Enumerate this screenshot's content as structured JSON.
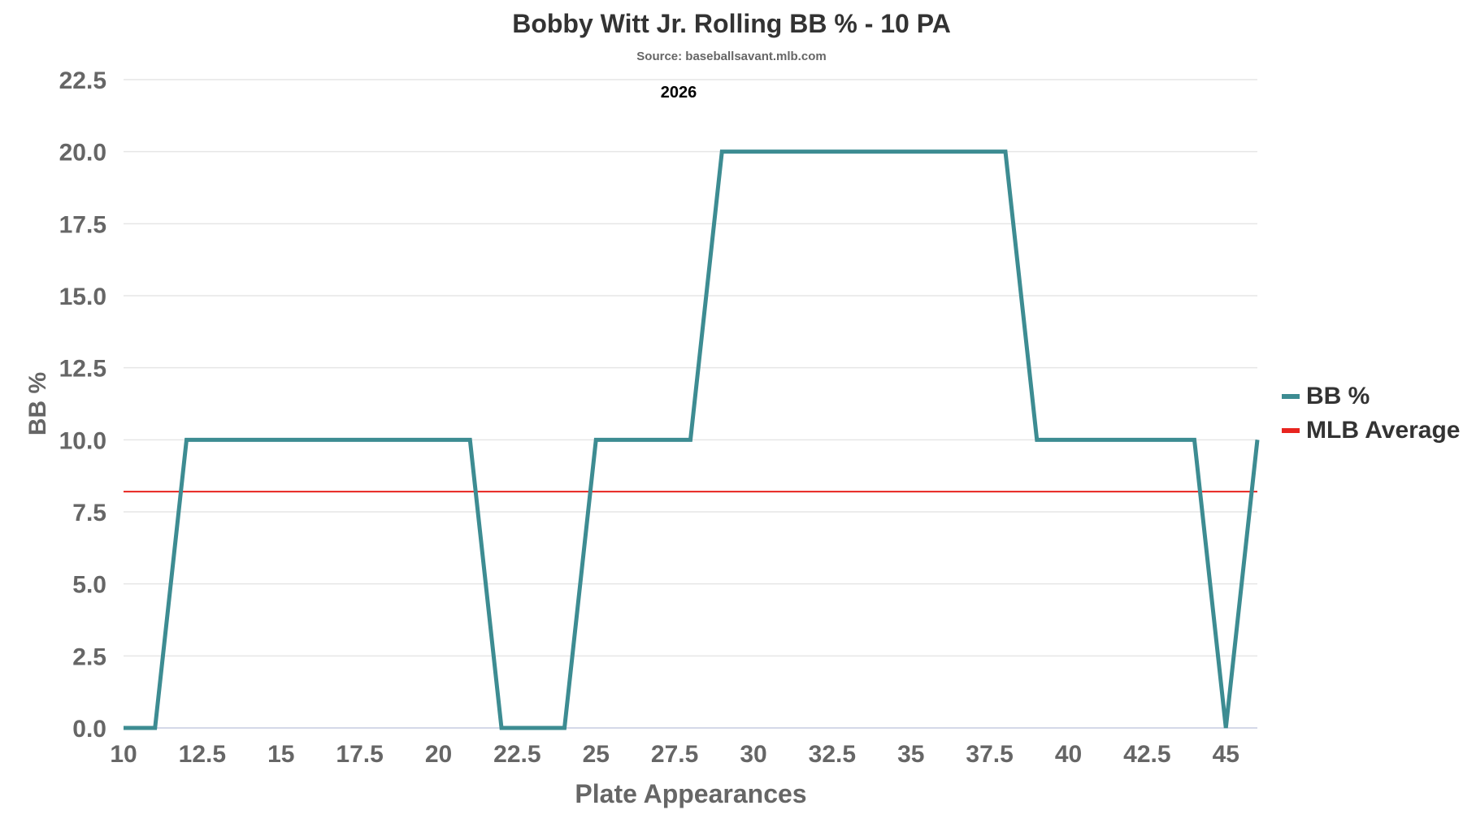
{
  "chart_data": {
    "type": "line",
    "title": "Bobby Witt Jr. Rolling BB % - 10 PA",
    "subtitle": "Source: baseballsavant.mlb.com",
    "annotation": "2026",
    "xlabel": "Plate Appearances",
    "ylabel": "BB %",
    "xlim": [
      10,
      46
    ],
    "ylim": [
      0,
      22.5
    ],
    "xticks": [
      "10",
      "12.5",
      "15",
      "17.5",
      "20",
      "22.5",
      "25",
      "27.5",
      "30",
      "32.5",
      "35",
      "37.5",
      "40",
      "42.5",
      "45"
    ],
    "yticks": [
      "0.0",
      "2.5",
      "5.0",
      "7.5",
      "10.0",
      "12.5",
      "15.0",
      "17.5",
      "20.0",
      "22.5"
    ],
    "grid": "horizontal",
    "legend_position": "right",
    "series": [
      {
        "name": "BB %",
        "color": "#3d8c92",
        "x": [
          10,
          11,
          12,
          13,
          14,
          15,
          16,
          17,
          18,
          19,
          20,
          21,
          22,
          23,
          24,
          25,
          26,
          27,
          28,
          29,
          30,
          31,
          32,
          33,
          34,
          35,
          36,
          37,
          38,
          39,
          40,
          41,
          42,
          43,
          44,
          45,
          46
        ],
        "y": [
          0,
          0,
          10,
          10,
          10,
          10,
          10,
          10,
          10,
          10,
          10,
          10,
          0,
          0,
          0,
          10,
          10,
          10,
          10,
          20,
          20,
          20,
          20,
          20,
          20,
          20,
          20,
          20,
          20,
          10,
          10,
          10,
          10,
          10,
          10,
          0,
          10
        ]
      },
      {
        "name": "MLB Average",
        "color": "#e8241f",
        "value": 8.2
      }
    ]
  }
}
